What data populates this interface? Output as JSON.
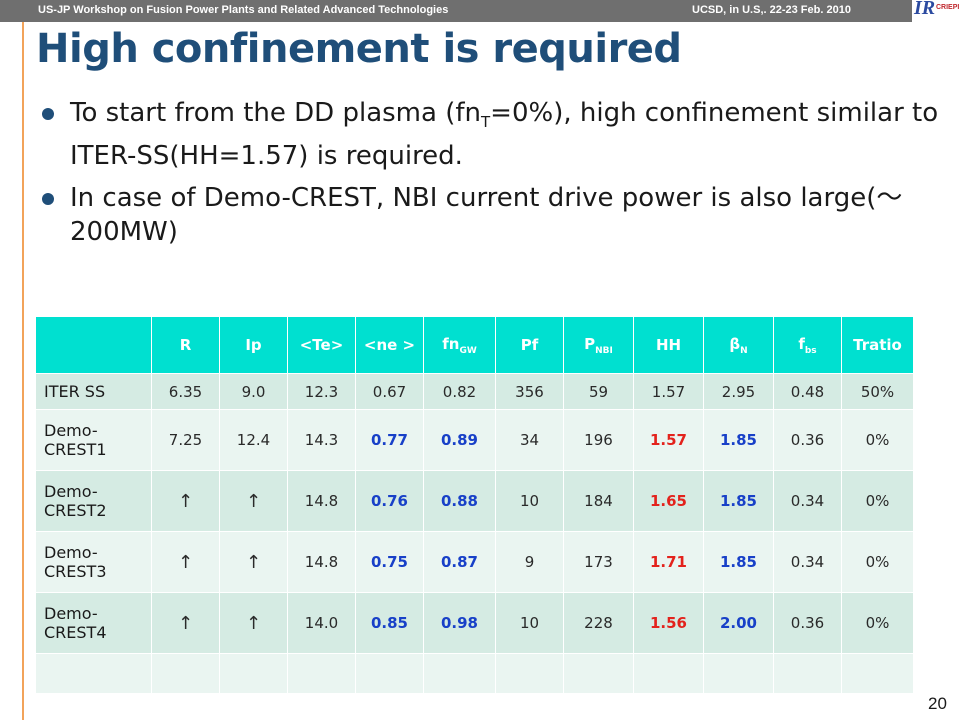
{
  "header": {
    "left": "US-JP  Workshop on Fusion Power Plants and Related Advanced Technologies",
    "right": "UCSD, in U.S,. 22-23 Feb. 2010",
    "logo_text": "IR",
    "logo_sub": "CRIEPI"
  },
  "title": "High confinement is required",
  "bullets": [
    {
      "pre": "To start from the DD plasma (fn",
      "sub": "T",
      "post": "=0%), high confinement similar to ITER-SS(HH=1.57) is required."
    },
    {
      "text": "In case of Demo-CREST, NBI current drive power is also large(～200MW)"
    }
  ],
  "table": {
    "headers": [
      {
        "main": ""
      },
      {
        "main": "R"
      },
      {
        "main": "Ip"
      },
      {
        "main": "<Te>"
      },
      {
        "main": "<ne >"
      },
      {
        "main": "fn",
        "sub": "GW"
      },
      {
        "main": "Pf"
      },
      {
        "main": "P",
        "sub": "NBI"
      },
      {
        "main": "HH"
      },
      {
        "main": "β",
        "sub": "N"
      },
      {
        "main": "f",
        "sub": "bs"
      },
      {
        "main": "Tratio"
      }
    ],
    "rows": [
      {
        "label": "ITER SS",
        "cells": [
          "6.35",
          "9.0",
          "12.3",
          "0.67",
          "0.82",
          "356",
          "59",
          "1.57",
          "2.95",
          "0.48",
          "50%"
        ]
      },
      {
        "label": "Demo-CREST1",
        "cells": [
          "7.25",
          "12.4",
          "14.3",
          "0.77",
          "0.89",
          "34",
          "196",
          "1.57",
          "1.85",
          "0.36",
          "0%"
        ]
      },
      {
        "label": "Demo-CREST2",
        "cells": [
          "↑",
          "↑",
          "14.8",
          "0.76",
          "0.88",
          "10",
          "184",
          "1.65",
          "1.85",
          "0.34",
          "0%"
        ]
      },
      {
        "label": "Demo-CREST3",
        "cells": [
          "↑",
          "↑",
          "14.8",
          "0.75",
          "0.87",
          "9",
          "173",
          "1.71",
          "1.85",
          "0.34",
          "0%"
        ]
      },
      {
        "label": "Demo-CREST4",
        "cells": [
          "↑",
          "↑",
          "14.0",
          "0.85",
          "0.98",
          "10",
          "228",
          "1.56",
          "2.00",
          "0.36",
          "0%"
        ]
      },
      {
        "label": "",
        "cells": [
          "",
          "",
          "",
          "",
          "",
          "",
          "",
          "",
          "",
          "",
          ""
        ]
      }
    ],
    "highlight": {
      "red_columns": [
        7
      ],
      "blue_columns": [
        3,
        4,
        8
      ],
      "highlight_rows": [
        1,
        2,
        3,
        4
      ]
    }
  },
  "colors": {
    "title": "#1f4e79",
    "header_bg": "#00e0d0",
    "row_odd": "#d5ebe3",
    "row_even": "#eaf5f1",
    "red": "#e3221c",
    "blue": "#1840c8"
  },
  "page_number": "20"
}
